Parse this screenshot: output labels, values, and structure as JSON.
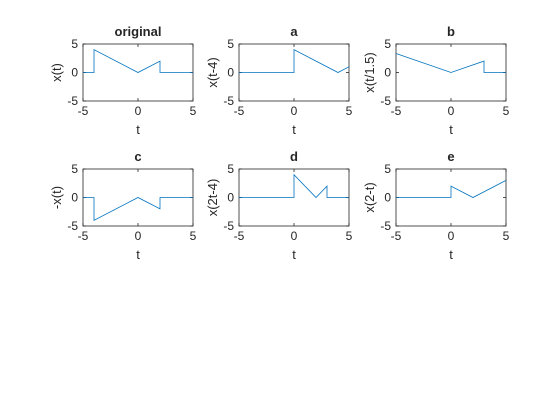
{
  "chart_data": [
    {
      "type": "line",
      "title": "original",
      "xlabel": "t",
      "ylabel": "x(t)",
      "xlim": [
        -5,
        5
      ],
      "ylim": [
        -5,
        5
      ],
      "xticks": [
        -5,
        0,
        5
      ],
      "yticks": [
        -5,
        0,
        5
      ],
      "x": [
        -5,
        -4,
        -4,
        0,
        2,
        2,
        5
      ],
      "y": [
        0,
        0,
        4,
        0,
        2,
        0,
        0
      ]
    },
    {
      "type": "line",
      "title": "a",
      "xlabel": "t",
      "ylabel": "x(t-4)",
      "xlim": [
        -5,
        5
      ],
      "ylim": [
        -5,
        5
      ],
      "xticks": [
        -5,
        0,
        5
      ],
      "yticks": [
        -5,
        0,
        5
      ],
      "x": [
        -5,
        0,
        0,
        4,
        5
      ],
      "y": [
        0,
        0,
        4,
        0,
        1
      ]
    },
    {
      "type": "line",
      "title": "b",
      "xlabel": "t",
      "ylabel": "x(t/1.5)",
      "xlim": [
        -5,
        5
      ],
      "ylim": [
        -5,
        5
      ],
      "xticks": [
        -5,
        0,
        5
      ],
      "yticks": [
        -5,
        0,
        5
      ],
      "x": [
        -5,
        0,
        3,
        3,
        5
      ],
      "y": [
        3.33,
        0,
        2,
        0,
        0
      ]
    },
    {
      "type": "line",
      "title": "c",
      "xlabel": "t",
      "ylabel": "-x(t)",
      "xlim": [
        -5,
        5
      ],
      "ylim": [
        -5,
        5
      ],
      "xticks": [
        -5,
        0,
        5
      ],
      "yticks": [
        -5,
        0,
        5
      ],
      "x": [
        -5,
        -4,
        -4,
        0,
        2,
        2,
        5
      ],
      "y": [
        0,
        0,
        -4,
        0,
        -2,
        0,
        0
      ]
    },
    {
      "type": "line",
      "title": "d",
      "xlabel": "t",
      "ylabel": "x(2t-4)",
      "xlim": [
        -5,
        5
      ],
      "ylim": [
        -5,
        5
      ],
      "xticks": [
        -5,
        0,
        5
      ],
      "yticks": [
        -5,
        0,
        5
      ],
      "x": [
        -5,
        0,
        0,
        2,
        3,
        3,
        5
      ],
      "y": [
        0,
        0,
        4,
        0,
        2,
        0,
        0
      ]
    },
    {
      "type": "line",
      "title": "e",
      "xlabel": "t",
      "ylabel": "x(2-t)",
      "xlim": [
        -5,
        5
      ],
      "ylim": [
        -5,
        5
      ],
      "xticks": [
        -5,
        0,
        5
      ],
      "yticks": [
        -5,
        0,
        5
      ],
      "x": [
        -5,
        0,
        0,
        2,
        5
      ],
      "y": [
        0,
        0,
        2,
        0,
        3
      ]
    }
  ],
  "colors": {
    "line": "#0072bd",
    "axes": "#262626",
    "background": "#ffffff"
  }
}
